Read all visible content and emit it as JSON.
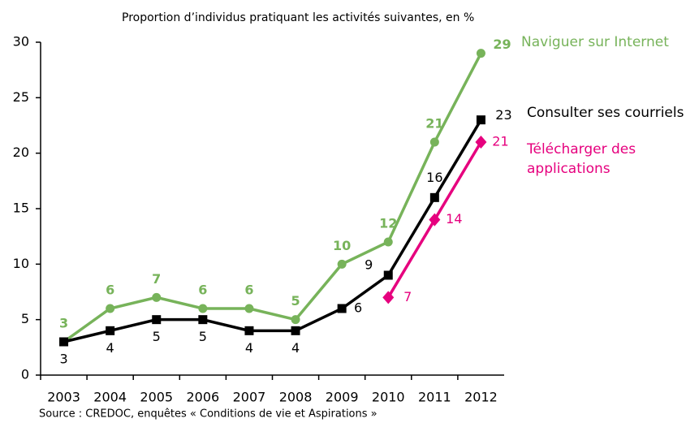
{
  "chart_data": {
    "type": "line",
    "title": "Proportion d’individus pratiquant les activités suivantes, en %",
    "source": "Source : CREDOC, enquêtes « Conditions de vie et Aspirations »",
    "categories": [
      "2003",
      "2004",
      "2005",
      "2006",
      "2007",
      "2008",
      "2009",
      "2010",
      "2011",
      "2012"
    ],
    "series": [
      {
        "name": "Naviguer sur Internet",
        "color": "#77b35a",
        "marker": "circle",
        "values": [
          3,
          6,
          7,
          6,
          6,
          5,
          10,
          12,
          21,
          29
        ]
      },
      {
        "name": "Consulter ses courriels",
        "color": "#000000",
        "marker": "square",
        "values": [
          3,
          4,
          5,
          5,
          4,
          4,
          6,
          9,
          16,
          23
        ]
      },
      {
        "name": "Télécharger des applications",
        "color": "#e6007e",
        "marker": "diamond",
        "values": [
          null,
          null,
          null,
          null,
          null,
          null,
          null,
          7,
          14,
          21
        ]
      }
    ],
    "ylim": [
      0,
      30
    ],
    "yticks": [
      0,
      5,
      10,
      15,
      20,
      25,
      30
    ],
    "grid": false
  }
}
